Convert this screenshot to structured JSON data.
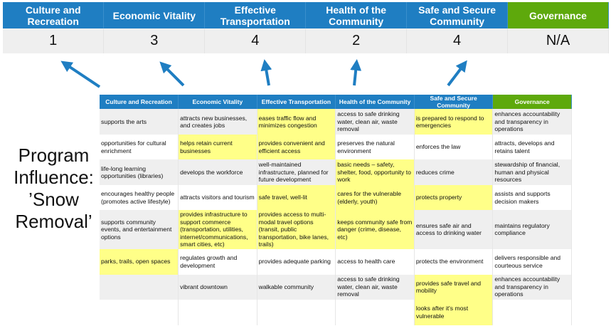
{
  "colors": {
    "header_blue": "#1f7ec2",
    "governance_green": "#5ea90c",
    "highlight_yellow": "#ffff88",
    "arrow": "#1f7ec2"
  },
  "scores": {
    "headers": [
      "Culture and Recreation",
      "Economic Vitality",
      "Effective Transportation",
      "Health of the Community",
      "Safe and Secure Community",
      "Governance"
    ],
    "values": [
      "1",
      "3",
      "4",
      "2",
      "4",
      "N/A"
    ]
  },
  "label": "Program Influence: ’Snow Removal’",
  "table": {
    "headers": [
      "Culture and Recreation",
      "Economic Vitality",
      "Effective Transportation",
      "Health of the Community",
      "Safe and Secure Community",
      "Governance"
    ],
    "rows": [
      [
        {
          "t": "supports the arts"
        },
        {
          "t": "attracts new businesses, and creates jobs"
        },
        {
          "t": "eases traffic flow and minimizes congestion",
          "h": true
        },
        {
          "t": "access to safe drinking water, clean air, waste removal"
        },
        {
          "t": "is prepared to respond to emergencies",
          "h": true
        },
        {
          "t": "enhances accountability and transparency in operations"
        }
      ],
      [
        {
          "t": "opportunities for cultural enrichment"
        },
        {
          "t": "helps retain current businesses",
          "h": true
        },
        {
          "t": "provides convenient and efficient access",
          "h": true
        },
        {
          "t": "preserves the natural environment"
        },
        {
          "t": "enforces the law"
        },
        {
          "t": "attracts, develops and retains talent"
        }
      ],
      [
        {
          "t": "life-long learning opportunities (libraries)"
        },
        {
          "t": "develops the workforce"
        },
        {
          "t": "well-maintained infrastructure, planned for future development"
        },
        {
          "t": "basic needs – safety, shelter, food, opportunity to work",
          "h": true
        },
        {
          "t": "reduces crime"
        },
        {
          "t": "stewardship of financial, human and physical resources"
        }
      ],
      [
        {
          "t": "encourages healthy people (promotes active lifestyle)"
        },
        {
          "t": "attracts visitors and tourism"
        },
        {
          "t": "safe travel, well-lit",
          "h": true
        },
        {
          "t": "cares for the vulnerable (elderly, youth)",
          "h": true
        },
        {
          "t": "protects property",
          "h": true
        },
        {
          "t": "assists and supports decision makers"
        }
      ],
      [
        {
          "t": "supports community events, and entertainment options"
        },
        {
          "t": "provides infrastructure to support commerce (transportation, utilities, internet/communications, smart cities, etc)",
          "h": true
        },
        {
          "t": "provides access to multi-modal travel options (transit, public transportation, bike lanes, trails)",
          "h": true
        },
        {
          "t": "keeps community safe from danger (crime, disease, etc)",
          "h": true
        },
        {
          "t": "ensures safe air and access to drinking water"
        },
        {
          "t": "maintains regulatory compliance"
        }
      ],
      [
        {
          "t": "parks, trails, open spaces",
          "h": true
        },
        {
          "t": "regulates growth and development"
        },
        {
          "t": "provides adequate parking"
        },
        {
          "t": "access to health care"
        },
        {
          "t": "protects the environment"
        },
        {
          "t": "delivers responsible and courteous service"
        }
      ],
      [
        {
          "t": ""
        },
        {
          "t": "vibrant downtown"
        },
        {
          "t": "walkable community"
        },
        {
          "t": "access to safe drinking water, clean air, waste removal"
        },
        {
          "t": "provides safe travel and mobility",
          "h": true
        },
        {
          "t": "enhances accountability and transparency in operations"
        }
      ],
      [
        {
          "t": ""
        },
        {
          "t": ""
        },
        {
          "t": ""
        },
        {
          "t": ""
        },
        {
          "t": "looks after it's most vulnerable",
          "h": true
        },
        {
          "t": ""
        }
      ]
    ]
  }
}
